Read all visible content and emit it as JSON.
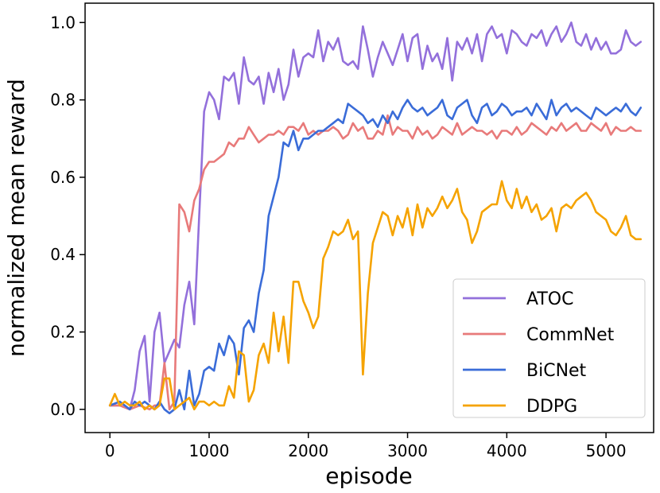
{
  "chart_data": {
    "type": "line",
    "xlabel": "episode",
    "ylabel": "normalized mean reward",
    "xlim": [
      -250,
      5480
    ],
    "ylim": [
      -0.06,
      1.05
    ],
    "xticks": [
      0,
      1000,
      2000,
      3000,
      4000,
      5000
    ],
    "yticks": [
      0.0,
      0.2,
      0.4,
      0.6,
      0.8,
      1.0
    ],
    "xtick_labels": [
      "0",
      "1000",
      "2000",
      "3000",
      "4000",
      "5000"
    ],
    "ytick_labels": [
      "0.0",
      "0.2",
      "0.4",
      "0.6",
      "0.8",
      "1.0"
    ],
    "grid": false,
    "legend_position": "lower-right",
    "series": [
      {
        "name": "ATOC",
        "color": "#9370DB",
        "x": [
          0,
          100,
          200,
          250,
          300,
          350,
          400,
          450,
          500,
          550,
          600,
          650,
          700,
          750,
          800,
          850,
          900,
          950,
          1000,
          1050,
          1100,
          1150,
          1200,
          1250,
          1300,
          1350,
          1400,
          1450,
          1500,
          1550,
          1600,
          1650,
          1700,
          1750,
          1800,
          1850,
          1900,
          1950,
          2000,
          2050,
          2100,
          2150,
          2200,
          2250,
          2300,
          2350,
          2400,
          2450,
          2500,
          2550,
          2600,
          2650,
          2700,
          2750,
          2800,
          2850,
          2900,
          2950,
          3000,
          3050,
          3100,
          3150,
          3200,
          3250,
          3300,
          3350,
          3400,
          3450,
          3500,
          3550,
          3600,
          3650,
          3700,
          3750,
          3800,
          3850,
          3900,
          3950,
          4000,
          4050,
          4100,
          4150,
          4200,
          4250,
          4300,
          4350,
          4400,
          4450,
          4500,
          4550,
          4600,
          4650,
          4700,
          4750,
          4800,
          4850,
          4900,
          4950,
          5000,
          5050,
          5100,
          5150,
          5200,
          5250,
          5300,
          5350
        ],
        "values": [
          0.01,
          0.01,
          0.0,
          0.05,
          0.15,
          0.19,
          0.02,
          0.2,
          0.25,
          0.12,
          0.15,
          0.18,
          0.16,
          0.27,
          0.33,
          0.22,
          0.5,
          0.77,
          0.82,
          0.8,
          0.75,
          0.86,
          0.85,
          0.87,
          0.79,
          0.91,
          0.85,
          0.84,
          0.86,
          0.79,
          0.87,
          0.82,
          0.88,
          0.8,
          0.84,
          0.93,
          0.86,
          0.91,
          0.92,
          0.91,
          0.98,
          0.9,
          0.95,
          0.93,
          0.96,
          0.9,
          0.89,
          0.9,
          0.88,
          0.99,
          0.93,
          0.86,
          0.91,
          0.95,
          0.92,
          0.89,
          0.93,
          0.97,
          0.9,
          0.96,
          0.97,
          0.88,
          0.94,
          0.9,
          0.92,
          0.88,
          0.96,
          0.85,
          0.95,
          0.93,
          0.96,
          0.92,
          0.97,
          0.9,
          0.97,
          0.99,
          0.96,
          0.97,
          0.92,
          0.98,
          0.97,
          0.95,
          0.94,
          0.97,
          0.96,
          0.98,
          0.94,
          0.97,
          0.99,
          0.95,
          0.97,
          1.0,
          0.95,
          0.94,
          0.97,
          0.93,
          0.96,
          0.93,
          0.95,
          0.92,
          0.92,
          0.93,
          0.98,
          0.95,
          0.94,
          0.95
        ]
      },
      {
        "name": "CommNet",
        "color": "#E87A7A",
        "x": [
          0,
          100,
          200,
          300,
          400,
          450,
          500,
          550,
          600,
          650,
          700,
          750,
          800,
          850,
          900,
          950,
          1000,
          1050,
          1100,
          1150,
          1200,
          1250,
          1300,
          1350,
          1400,
          1450,
          1500,
          1550,
          1600,
          1650,
          1700,
          1750,
          1800,
          1850,
          1900,
          1950,
          2000,
          2050,
          2100,
          2150,
          2200,
          2250,
          2300,
          2350,
          2400,
          2450,
          2500,
          2550,
          2600,
          2650,
          2700,
          2750,
          2800,
          2850,
          2900,
          2950,
          3000,
          3050,
          3100,
          3150,
          3200,
          3250,
          3300,
          3350,
          3400,
          3450,
          3500,
          3550,
          3600,
          3650,
          3700,
          3750,
          3800,
          3850,
          3900,
          3950,
          4000,
          4050,
          4100,
          4150,
          4200,
          4250,
          4300,
          4350,
          4400,
          4450,
          4500,
          4550,
          4600,
          4650,
          4700,
          4750,
          4800,
          4850,
          4900,
          4950,
          5000,
          5050,
          5100,
          5150,
          5200,
          5250,
          5300,
          5350
        ],
        "values": [
          0.01,
          0.01,
          0.0,
          0.01,
          0.0,
          0.01,
          0.01,
          0.12,
          0.0,
          0.02,
          0.53,
          0.51,
          0.46,
          0.54,
          0.57,
          0.62,
          0.64,
          0.64,
          0.65,
          0.66,
          0.69,
          0.68,
          0.7,
          0.7,
          0.73,
          0.71,
          0.69,
          0.7,
          0.71,
          0.71,
          0.72,
          0.71,
          0.73,
          0.73,
          0.72,
          0.74,
          0.71,
          0.72,
          0.71,
          0.72,
          0.72,
          0.73,
          0.72,
          0.7,
          0.71,
          0.74,
          0.72,
          0.73,
          0.7,
          0.7,
          0.72,
          0.71,
          0.76,
          0.71,
          0.73,
          0.72,
          0.72,
          0.7,
          0.73,
          0.71,
          0.72,
          0.7,
          0.71,
          0.73,
          0.72,
          0.71,
          0.74,
          0.71,
          0.72,
          0.73,
          0.72,
          0.72,
          0.71,
          0.72,
          0.7,
          0.72,
          0.72,
          0.71,
          0.73,
          0.71,
          0.72,
          0.74,
          0.73,
          0.72,
          0.71,
          0.73,
          0.72,
          0.74,
          0.72,
          0.73,
          0.74,
          0.72,
          0.72,
          0.74,
          0.73,
          0.72,
          0.74,
          0.71,
          0.73,
          0.72,
          0.72,
          0.73,
          0.72,
          0.72
        ]
      },
      {
        "name": "BiCNet",
        "color": "#3A6CD8",
        "x": [
          0,
          100,
          200,
          250,
          300,
          350,
          400,
          450,
          500,
          550,
          600,
          650,
          700,
          750,
          800,
          850,
          900,
          950,
          1000,
          1050,
          1100,
          1150,
          1200,
          1250,
          1300,
          1350,
          1400,
          1450,
          1500,
          1550,
          1600,
          1650,
          1700,
          1750,
          1800,
          1850,
          1900,
          1950,
          2000,
          2050,
          2100,
          2150,
          2200,
          2250,
          2300,
          2350,
          2400,
          2450,
          2500,
          2550,
          2600,
          2650,
          2700,
          2750,
          2800,
          2850,
          2900,
          2950,
          3000,
          3050,
          3100,
          3150,
          3200,
          3250,
          3300,
          3350,
          3400,
          3450,
          3500,
          3550,
          3600,
          3650,
          3700,
          3750,
          3800,
          3850,
          3900,
          3950,
          4000,
          4050,
          4100,
          4150,
          4200,
          4250,
          4300,
          4350,
          4400,
          4450,
          4500,
          4550,
          4600,
          4650,
          4700,
          4750,
          4800,
          4850,
          4900,
          4950,
          5000,
          5050,
          5100,
          5150,
          5200,
          5250,
          5300,
          5350
        ],
        "values": [
          0.01,
          0.02,
          0.0,
          0.02,
          0.01,
          0.02,
          0.01,
          0.0,
          0.02,
          0.0,
          -0.01,
          0.0,
          0.05,
          0.0,
          0.1,
          0.01,
          0.04,
          0.1,
          0.11,
          0.1,
          0.17,
          0.14,
          0.19,
          0.17,
          0.09,
          0.21,
          0.23,
          0.2,
          0.3,
          0.36,
          0.5,
          0.55,
          0.6,
          0.69,
          0.68,
          0.72,
          0.67,
          0.7,
          0.7,
          0.71,
          0.72,
          0.72,
          0.73,
          0.74,
          0.75,
          0.74,
          0.79,
          0.78,
          0.77,
          0.76,
          0.74,
          0.75,
          0.73,
          0.76,
          0.74,
          0.77,
          0.75,
          0.78,
          0.8,
          0.78,
          0.77,
          0.78,
          0.76,
          0.77,
          0.78,
          0.8,
          0.76,
          0.75,
          0.78,
          0.79,
          0.8,
          0.76,
          0.74,
          0.78,
          0.79,
          0.76,
          0.77,
          0.79,
          0.78,
          0.76,
          0.77,
          0.77,
          0.78,
          0.76,
          0.79,
          0.77,
          0.75,
          0.8,
          0.76,
          0.78,
          0.79,
          0.77,
          0.78,
          0.77,
          0.76,
          0.75,
          0.78,
          0.77,
          0.76,
          0.77,
          0.78,
          0.77,
          0.79,
          0.77,
          0.76,
          0.78
        ]
      },
      {
        "name": "DDPG",
        "color": "#F5A300",
        "x": [
          0,
          50,
          100,
          150,
          200,
          250,
          300,
          350,
          400,
          450,
          500,
          550,
          600,
          650,
          700,
          750,
          800,
          850,
          900,
          950,
          1000,
          1050,
          1100,
          1150,
          1200,
          1250,
          1300,
          1350,
          1400,
          1450,
          1500,
          1550,
          1600,
          1650,
          1700,
          1750,
          1800,
          1850,
          1900,
          1950,
          2000,
          2050,
          2100,
          2150,
          2200,
          2250,
          2300,
          2350,
          2400,
          2450,
          2500,
          2550,
          2600,
          2650,
          2700,
          2750,
          2800,
          2850,
          2900,
          2950,
          3000,
          3050,
          3100,
          3150,
          3200,
          3250,
          3300,
          3350,
          3400,
          3450,
          3500,
          3550,
          3600,
          3650,
          3700,
          3750,
          3800,
          3850,
          3900,
          3950,
          4000,
          4050,
          4100,
          4150,
          4200,
          4250,
          4300,
          4350,
          4400,
          4450,
          4500,
          4550,
          4600,
          4650,
          4700,
          4750,
          4800,
          4850,
          4900,
          4950,
          5000,
          5050,
          5100,
          5150,
          5200,
          5250,
          5300,
          5350
        ],
        "values": [
          0.01,
          0.04,
          0.01,
          0.02,
          0.01,
          0.01,
          0.02,
          0.0,
          0.01,
          0.0,
          0.01,
          0.08,
          0.08,
          0.0,
          0.01,
          0.02,
          0.03,
          0.0,
          0.02,
          0.02,
          0.01,
          0.02,
          0.01,
          0.01,
          0.06,
          0.03,
          0.15,
          0.14,
          0.02,
          0.05,
          0.14,
          0.17,
          0.12,
          0.25,
          0.15,
          0.24,
          0.12,
          0.33,
          0.33,
          0.28,
          0.25,
          0.21,
          0.24,
          0.39,
          0.42,
          0.46,
          0.45,
          0.46,
          0.49,
          0.44,
          0.46,
          0.09,
          0.3,
          0.43,
          0.47,
          0.51,
          0.5,
          0.45,
          0.5,
          0.47,
          0.52,
          0.45,
          0.53,
          0.47,
          0.52,
          0.5,
          0.52,
          0.55,
          0.52,
          0.54,
          0.57,
          0.51,
          0.49,
          0.43,
          0.46,
          0.51,
          0.52,
          0.53,
          0.53,
          0.59,
          0.54,
          0.52,
          0.57,
          0.52,
          0.55,
          0.51,
          0.53,
          0.49,
          0.5,
          0.52,
          0.46,
          0.52,
          0.53,
          0.52,
          0.54,
          0.55,
          0.56,
          0.54,
          0.51,
          0.5,
          0.49,
          0.46,
          0.45,
          0.47,
          0.5,
          0.45,
          0.44,
          0.44
        ]
      }
    ]
  }
}
